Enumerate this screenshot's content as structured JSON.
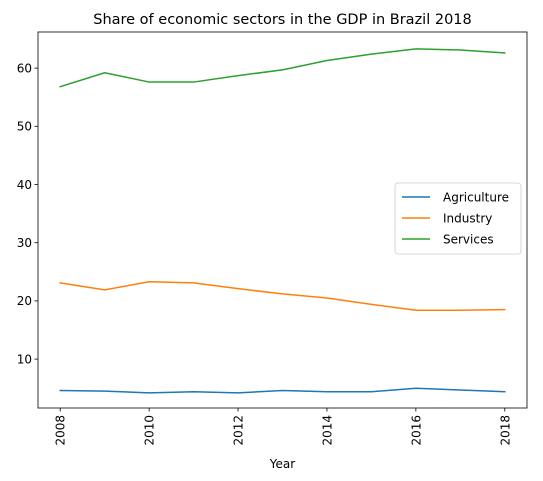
{
  "chart_data": {
    "type": "line",
    "title": "Share of economic sectors in the GDP in Brazil 2018",
    "xlabel": "Year",
    "ylabel": "",
    "x": [
      2008,
      2009,
      2010,
      2011,
      2012,
      2013,
      2014,
      2015,
      2016,
      2017,
      2018
    ],
    "xticks": [
      "2008",
      "2010",
      "2012",
      "2014",
      "2016",
      "2018"
    ],
    "yticks": [
      "10",
      "20",
      "30",
      "40",
      "50",
      "60"
    ],
    "xlim": [
      2007.5,
      2018.5
    ],
    "ylim": [
      1.6,
      66.2
    ],
    "grid": false,
    "legend_position": "center-right",
    "series": [
      {
        "name": "Agriculture",
        "color": "#1f77b4",
        "values": [
          4.6,
          4.5,
          4.2,
          4.4,
          4.2,
          4.6,
          4.4,
          4.4,
          5.0,
          4.7,
          4.4
        ]
      },
      {
        "name": "Industry",
        "color": "#ff7f0e",
        "values": [
          23.1,
          21.9,
          23.3,
          23.1,
          22.1,
          21.2,
          20.5,
          19.4,
          18.4,
          18.4,
          18.5
        ]
      },
      {
        "name": "Services",
        "color": "#2ca02c",
        "values": [
          56.8,
          59.2,
          57.6,
          57.6,
          58.7,
          59.7,
          61.3,
          62.4,
          63.3,
          63.1,
          62.6
        ]
      }
    ]
  }
}
